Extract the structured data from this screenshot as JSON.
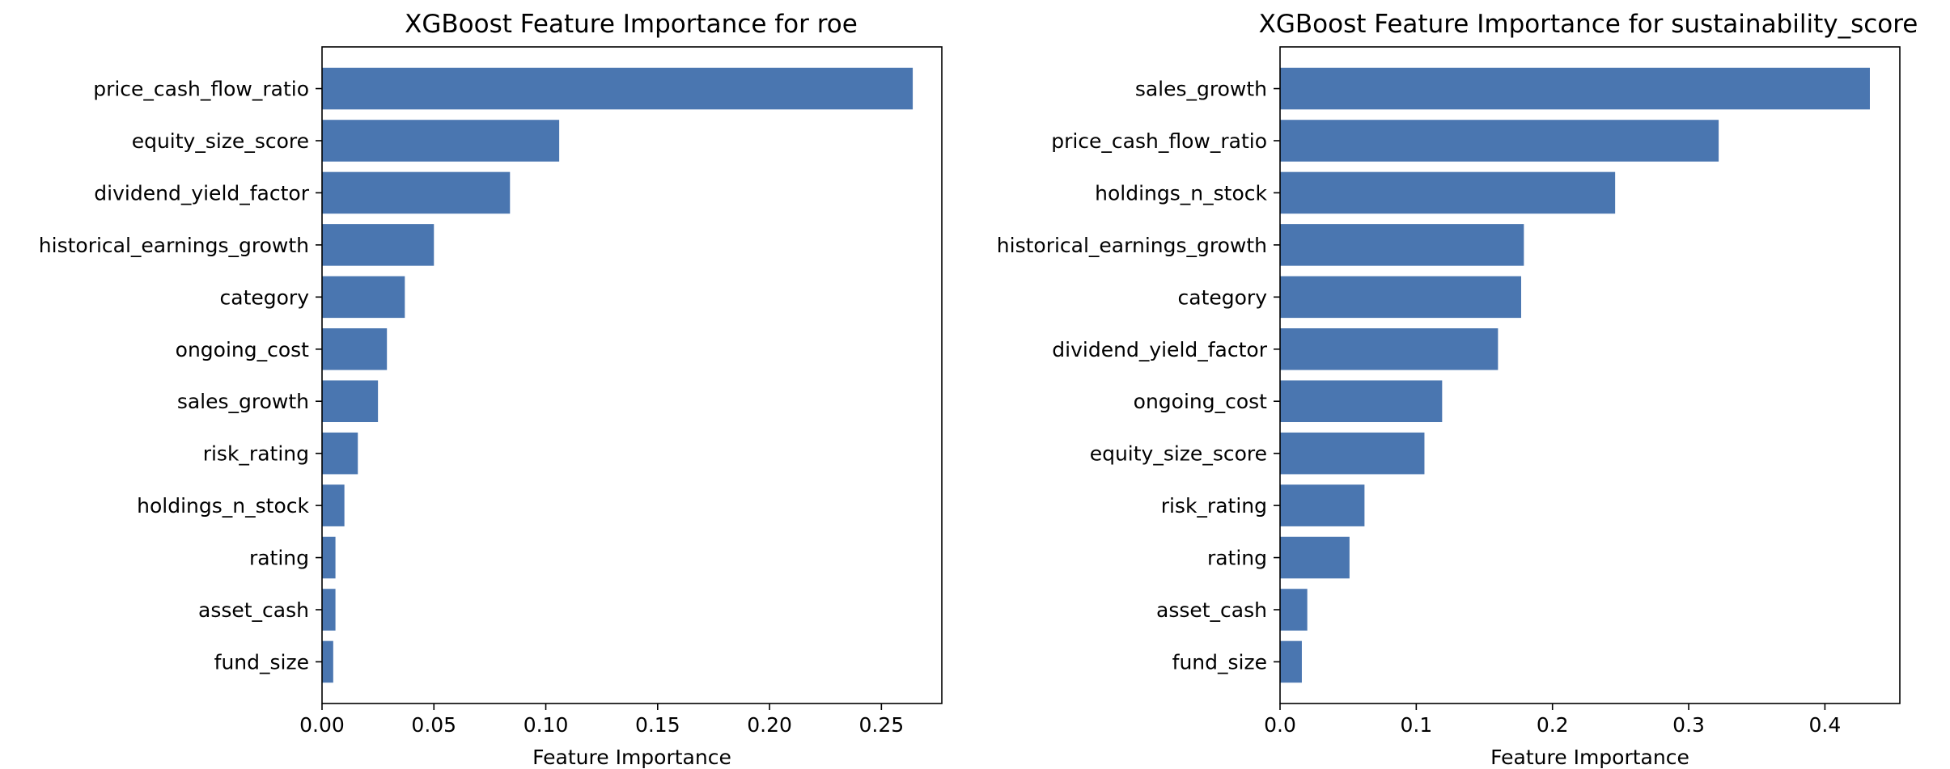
{
  "chart_data": [
    {
      "type": "bar",
      "orientation": "horizontal",
      "title": "XGBoost Feature Importance for roe",
      "xlabel": "Feature Importance",
      "ylabel": "",
      "categories": [
        "price_cash_flow_ratio",
        "equity_size_score",
        "dividend_yield_factor",
        "historical_earnings_growth",
        "category",
        "ongoing_cost",
        "sales_growth",
        "risk_rating",
        "holdings_n_stock",
        "rating",
        "asset_cash",
        "fund_size"
      ],
      "values": [
        0.264,
        0.106,
        0.084,
        0.05,
        0.037,
        0.029,
        0.025,
        0.016,
        0.01,
        0.006,
        0.006,
        0.005
      ],
      "xlim": [
        0,
        0.277
      ],
      "xticks": [
        0.0,
        0.05,
        0.1,
        0.15,
        0.2,
        0.25
      ],
      "xtick_labels": [
        "0.00",
        "0.05",
        "0.10",
        "0.15",
        "0.20",
        "0.25"
      ],
      "bar_color": "#4a76b0",
      "grid": false
    },
    {
      "type": "bar",
      "orientation": "horizontal",
      "title": "XGBoost Feature Importance for sustainability_score",
      "xlabel": "Feature Importance",
      "ylabel": "",
      "categories": [
        "sales_growth",
        "price_cash_flow_ratio",
        "holdings_n_stock",
        "historical_earnings_growth",
        "category",
        "dividend_yield_factor",
        "ongoing_cost",
        "equity_size_score",
        "risk_rating",
        "rating",
        "asset_cash",
        "fund_size"
      ],
      "values": [
        0.433,
        0.322,
        0.246,
        0.179,
        0.177,
        0.16,
        0.119,
        0.106,
        0.062,
        0.051,
        0.02,
        0.016
      ],
      "xlim": [
        0,
        0.455
      ],
      "xticks": [
        0.0,
        0.1,
        0.2,
        0.3,
        0.4
      ],
      "xtick_labels": [
        "0.0",
        "0.1",
        "0.2",
        "0.3",
        "0.4"
      ],
      "bar_color": "#4a76b0",
      "grid": false
    }
  ]
}
